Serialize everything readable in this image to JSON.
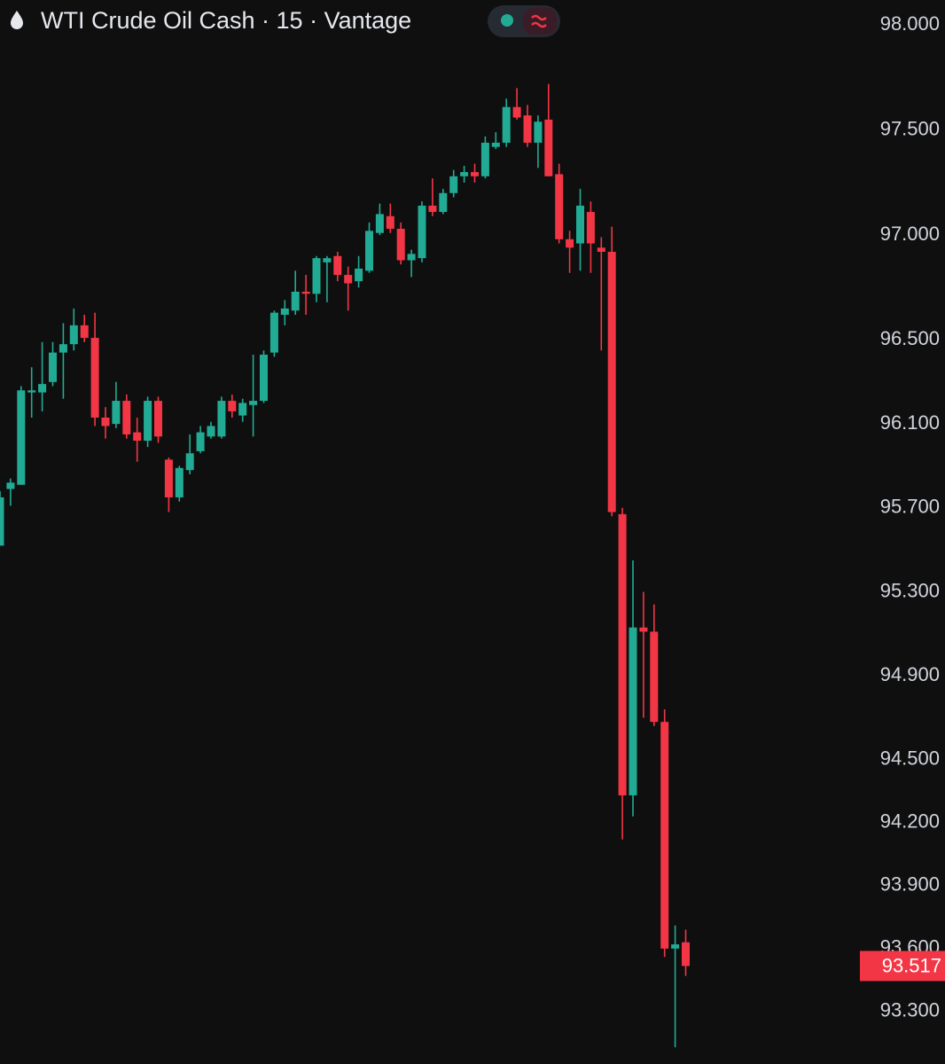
{
  "chart_data": {
    "type": "candlestick",
    "title": "WTI Crude Oil Cash · 15 · Vantage",
    "up_color": "#22ab94",
    "down_color": "#f23645",
    "grid": false,
    "ylim": [
      93.05,
      98.12
    ],
    "yticks": [
      {
        "value": 98,
        "label": "98.000"
      },
      {
        "value": 97.5,
        "label": "97.500"
      },
      {
        "value": 97,
        "label": "97.000"
      },
      {
        "value": 96.5,
        "label": "96.500"
      },
      {
        "value": 96.1,
        "label": "96.100"
      },
      {
        "value": 95.7,
        "label": "95.700"
      },
      {
        "value": 95.3,
        "label": "95.300"
      },
      {
        "value": 94.9,
        "label": "94.900"
      },
      {
        "value": 94.5,
        "label": "94.500"
      },
      {
        "value": 94.2,
        "label": "94.200"
      },
      {
        "value": 93.9,
        "label": "93.900"
      },
      {
        "value": 93.6,
        "label": "93.600"
      },
      {
        "value": 93.3,
        "label": "93.300"
      }
    ],
    "last_price": 93.517,
    "open": [
      95.52,
      95.79,
      95.81,
      96.25,
      96.25,
      96.3,
      96.44,
      96.48,
      96.57,
      96.51,
      96.13,
      96.1,
      96.21,
      96.06,
      96.02,
      96.21,
      95.93,
      95.75,
      95.88,
      95.97,
      96.04,
      96.04,
      96.21,
      96.14,
      96.19,
      96.21,
      96.44,
      96.62,
      96.64,
      96.73,
      96.72,
      96.87,
      96.9,
      96.81,
      96.78,
      96.83,
      97.01,
      97.09,
      97.03,
      96.88,
      96.89,
      97.14,
      97.11,
      97.2,
      97.28,
      97.3,
      97.28,
      97.42,
      97.44,
      97.61,
      97.57,
      97.44,
      97.55,
      97.29,
      96.98,
      96.96,
      97.11,
      96.94,
      96.92,
      95.67,
      94.33,
      95.13,
      95.11,
      94.68,
      93.6,
      93.63
    ],
    "high": [
      95.78,
      95.84,
      96.28,
      96.37,
      96.49,
      96.49,
      96.58,
      96.65,
      96.62,
      96.63,
      96.18,
      96.3,
      96.24,
      96.13,
      96.23,
      96.23,
      95.94,
      95.9,
      96.05,
      96.09,
      96.11,
      96.23,
      96.24,
      96.22,
      96.43,
      96.45,
      96.64,
      96.69,
      96.83,
      96.81,
      96.9,
      96.9,
      96.92,
      96.85,
      96.9,
      97.06,
      97.15,
      97.15,
      97.06,
      96.93,
      97.16,
      97.27,
      97.22,
      97.31,
      97.33,
      97.34,
      97.47,
      97.49,
      97.65,
      97.7,
      97.62,
      97.57,
      97.72,
      97.34,
      97.02,
      97.22,
      97.16,
      96.99,
      97.04,
      95.7,
      95.45,
      95.3,
      95.24,
      94.74,
      93.71,
      93.69
    ],
    "low": [
      95.52,
      95.71,
      95.81,
      96.13,
      96.16,
      96.28,
      96.22,
      96.45,
      96.49,
      96.09,
      96.03,
      96.08,
      96.03,
      95.92,
      95.99,
      96.01,
      95.68,
      95.73,
      95.86,
      95.96,
      96.03,
      96.03,
      96.13,
      96.11,
      96.04,
      96.2,
      96.42,
      96.57,
      96.62,
      96.62,
      96.68,
      96.68,
      96.78,
      96.64,
      96.75,
      96.82,
      97.0,
      97.01,
      96.86,
      96.8,
      96.87,
      97.09,
      97.1,
      97.18,
      97.25,
      97.25,
      97.27,
      97.41,
      97.42,
      97.55,
      97.42,
      97.32,
      97.28,
      96.96,
      96.82,
      96.83,
      96.82,
      96.45,
      95.66,
      94.12,
      94.23,
      94.7,
      94.66,
      93.56,
      93.13,
      93.47
    ],
    "close": [
      95.75,
      95.82,
      96.26,
      96.26,
      96.29,
      96.44,
      96.48,
      96.57,
      96.51,
      96.13,
      96.09,
      96.21,
      96.05,
      96.02,
      96.21,
      96.04,
      95.75,
      95.89,
      95.96,
      96.06,
      96.09,
      96.21,
      96.16,
      96.2,
      96.21,
      96.43,
      96.63,
      96.65,
      96.73,
      96.72,
      96.89,
      96.89,
      96.81,
      96.77,
      96.84,
      97.02,
      97.1,
      97.03,
      96.88,
      96.91,
      97.14,
      97.11,
      97.2,
      97.28,
      97.3,
      97.28,
      97.44,
      97.44,
      97.61,
      97.56,
      97.44,
      97.54,
      97.28,
      96.98,
      96.94,
      97.14,
      96.96,
      96.92,
      95.68,
      94.33,
      95.13,
      95.11,
      94.68,
      93.6,
      93.62,
      93.517
    ]
  }
}
